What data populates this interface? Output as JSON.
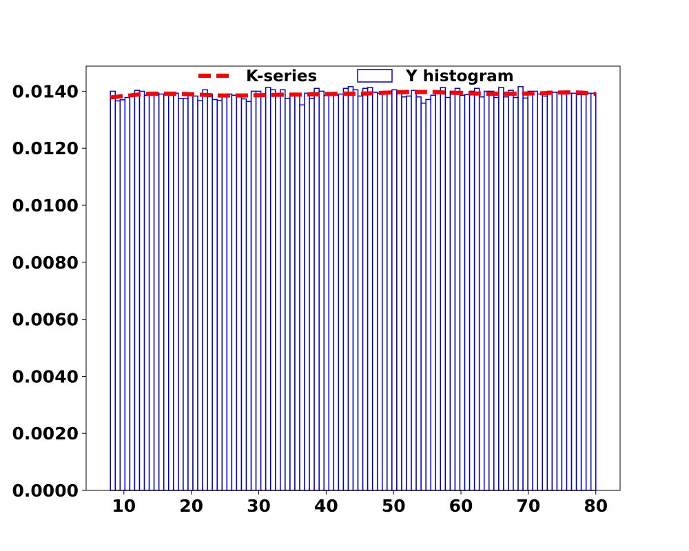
{
  "chart_data": {
    "type": "bar",
    "title": "",
    "xlabel": "",
    "ylabel": "",
    "xlim": [
      4.4,
      83.6
    ],
    "ylim": [
      0.0,
      0.01488
    ],
    "grid": false,
    "legend_placement": "top-center",
    "xticks": [
      10,
      20,
      30,
      40,
      50,
      60,
      70,
      80
    ],
    "xtick_labels": [
      "10",
      "20",
      "30",
      "40",
      "50",
      "60",
      "70",
      "80"
    ],
    "yticks": [
      0.0,
      0.002,
      0.004,
      0.006,
      0.008,
      0.01,
      0.012,
      0.014
    ],
    "ytick_labels": [
      "0.0000",
      "0.0020",
      "0.0040",
      "0.0060",
      "0.0080",
      "0.0100",
      "0.0120",
      "0.0140"
    ],
    "legend": [
      "K-series",
      "Y histogram"
    ],
    "histogram": {
      "name": "Y histogram",
      "color": "#0000cc",
      "bin_start": 8.0,
      "bin_end": 80.0,
      "values": [
        0.014,
        0.01366,
        0.0137,
        0.01378,
        0.01388,
        0.01403,
        0.014,
        0.01386,
        0.01393,
        0.01393,
        0.0139,
        0.01388,
        0.01393,
        0.01393,
        0.01375,
        0.01375,
        0.01386,
        0.01383,
        0.01367,
        0.01405,
        0.0139,
        0.01371,
        0.01368,
        0.01385,
        0.0139,
        0.01386,
        0.01383,
        0.01373,
        0.01364,
        0.014,
        0.014,
        0.01386,
        0.01413,
        0.01405,
        0.01388,
        0.01405,
        0.01375,
        0.01388,
        0.01386,
        0.01352,
        0.01393,
        0.01375,
        0.0141,
        0.014,
        0.01385,
        0.01388,
        0.01386,
        0.0139,
        0.0141,
        0.01416,
        0.01405,
        0.01383,
        0.0141,
        0.01413,
        0.01396,
        0.01393,
        0.01393,
        0.014,
        0.01405,
        0.014,
        0.0138,
        0.01383,
        0.01403,
        0.0138,
        0.01358,
        0.01371,
        0.01386,
        0.014,
        0.01413,
        0.01378,
        0.014,
        0.0141,
        0.01386,
        0.01388,
        0.014,
        0.0141,
        0.0138,
        0.014,
        0.014,
        0.01378,
        0.01413,
        0.0138,
        0.01403,
        0.01378,
        0.01416,
        0.01376,
        0.014,
        0.014,
        0.0139,
        0.01383,
        0.014,
        0.01396,
        0.01396,
        0.0139,
        0.01393,
        0.01393,
        0.01388,
        0.01388,
        0.01393,
        0.01393
      ]
    },
    "line": {
      "name": "K-series",
      "color": "#ff0000",
      "style": "dashed",
      "x": [
        8,
        10,
        12,
        14,
        16,
        18,
        20,
        22,
        24,
        26,
        28,
        30,
        32,
        34,
        36,
        38,
        40,
        42,
        44,
        46,
        48,
        50,
        52,
        54,
        56,
        58,
        60,
        62,
        64,
        66,
        68,
        70,
        72,
        74,
        76,
        78,
        80
      ],
      "y": [
        0.01378,
        0.01383,
        0.01388,
        0.01391,
        0.01391,
        0.01391,
        0.01389,
        0.01387,
        0.01385,
        0.01385,
        0.01385,
        0.01386,
        0.01387,
        0.01388,
        0.01388,
        0.01389,
        0.0139,
        0.01391,
        0.01391,
        0.01392,
        0.01394,
        0.01396,
        0.01397,
        0.01397,
        0.01397,
        0.01395,
        0.01394,
        0.01392,
        0.01391,
        0.01391,
        0.01391,
        0.01392,
        0.01393,
        0.01395,
        0.01396,
        0.01395,
        0.0139
      ]
    }
  }
}
